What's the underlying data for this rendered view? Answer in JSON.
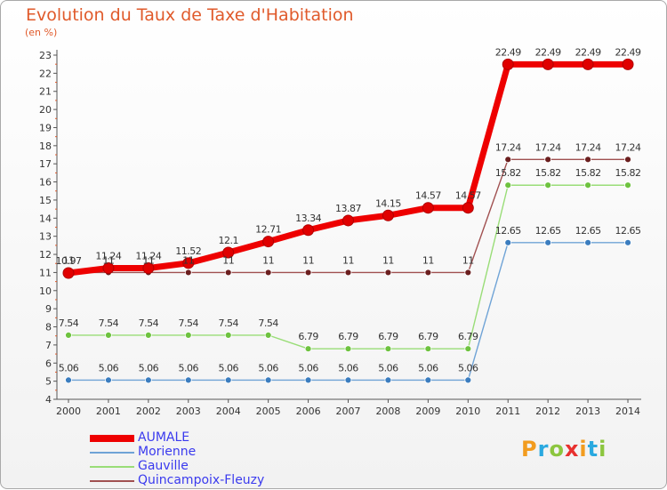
{
  "title": "Evolution du Taux de Taxe d'Habitation",
  "subtitle": "(en %)",
  "logo_text": "Proxiti",
  "logo_letters": [
    {
      "ch": "P",
      "color": "#f29c1f"
    },
    {
      "ch": "r",
      "color": "#2aa9e0"
    },
    {
      "ch": "o",
      "color": "#8cc63f"
    },
    {
      "ch": "x",
      "color": "#e8312f"
    },
    {
      "ch": "i",
      "color": "#f29c1f"
    },
    {
      "ch": "t",
      "color": "#2aa9e0"
    },
    {
      "ch": "i",
      "color": "#8cc63f"
    }
  ],
  "chart_data": {
    "type": "line",
    "title": "Evolution du Taux de Taxe d'Habitation",
    "subtitle": "(en %)",
    "xlabel": "",
    "ylabel": "",
    "x": [
      "2000",
      "2001",
      "2002",
      "2003",
      "2004",
      "2005",
      "2006",
      "2007",
      "2008",
      "2009",
      "2010",
      "2011",
      "2012",
      "2013",
      "2014"
    ],
    "ylim": [
      4,
      23
    ],
    "yticks": [
      4,
      5,
      6,
      7,
      8,
      9,
      10,
      11,
      12,
      13,
      14,
      15,
      16,
      17,
      18,
      19,
      20,
      21,
      22,
      23
    ],
    "grid": false,
    "legend_placement": "bottom-left",
    "series": [
      {
        "name": "AUMALE",
        "color": "#ee0000",
        "point_color": "#e00000",
        "values": [
          10.97,
          11.24,
          11.24,
          11.52,
          12.1,
          12.71,
          13.34,
          13.87,
          14.15,
          14.57,
          14.57,
          22.49,
          22.49,
          22.49,
          22.49
        ],
        "labels": [
          "10.97",
          "11.24",
          "11.24",
          "11.52",
          "12.1",
          "12.71",
          "13.34",
          "13.87",
          "14.15",
          "14.57",
          "14.57",
          "22.49",
          "22.49",
          "22.49",
          "22.49"
        ]
      },
      {
        "name": "Morienne",
        "color": "#6fa3d6",
        "point_color": "#3b7dbf",
        "values": [
          5.06,
          5.06,
          5.06,
          5.06,
          5.06,
          5.06,
          5.06,
          5.06,
          5.06,
          5.06,
          5.06,
          12.65,
          12.65,
          12.65,
          12.65
        ],
        "labels": [
          "5.06",
          "5.06",
          "5.06",
          "5.06",
          "5.06",
          "5.06",
          "5.06",
          "5.06",
          "5.06",
          "5.06",
          "5.06",
          "12.65",
          "12.65",
          "12.65",
          "12.65"
        ]
      },
      {
        "name": "Gauville",
        "color": "#99dd77",
        "point_color": "#6ec23f",
        "values": [
          7.54,
          7.54,
          7.54,
          7.54,
          7.54,
          7.54,
          6.79,
          6.79,
          6.79,
          6.79,
          6.79,
          15.82,
          15.82,
          15.82,
          15.82
        ],
        "labels": [
          "7.54",
          "7.54",
          "7.54",
          "7.54",
          "7.54",
          "7.54",
          "6.79",
          "6.79",
          "6.79",
          "6.79",
          "6.79",
          "15.82",
          "15.82",
          "15.82",
          "15.82"
        ]
      },
      {
        "name": "Quincampoix-Fleuzy",
        "color": "#a05050",
        "point_color": "#6b1f1f",
        "values": [
          11,
          11,
          11,
          11,
          11,
          11,
          11,
          11,
          11,
          11,
          11,
          17.24,
          17.24,
          17.24,
          17.24
        ],
        "labels": [
          "11",
          "11",
          "11",
          "11",
          "11",
          "11",
          "11",
          "11",
          "11",
          "11",
          "11",
          "17.24",
          "17.24",
          "17.24",
          "17.24"
        ]
      }
    ]
  }
}
